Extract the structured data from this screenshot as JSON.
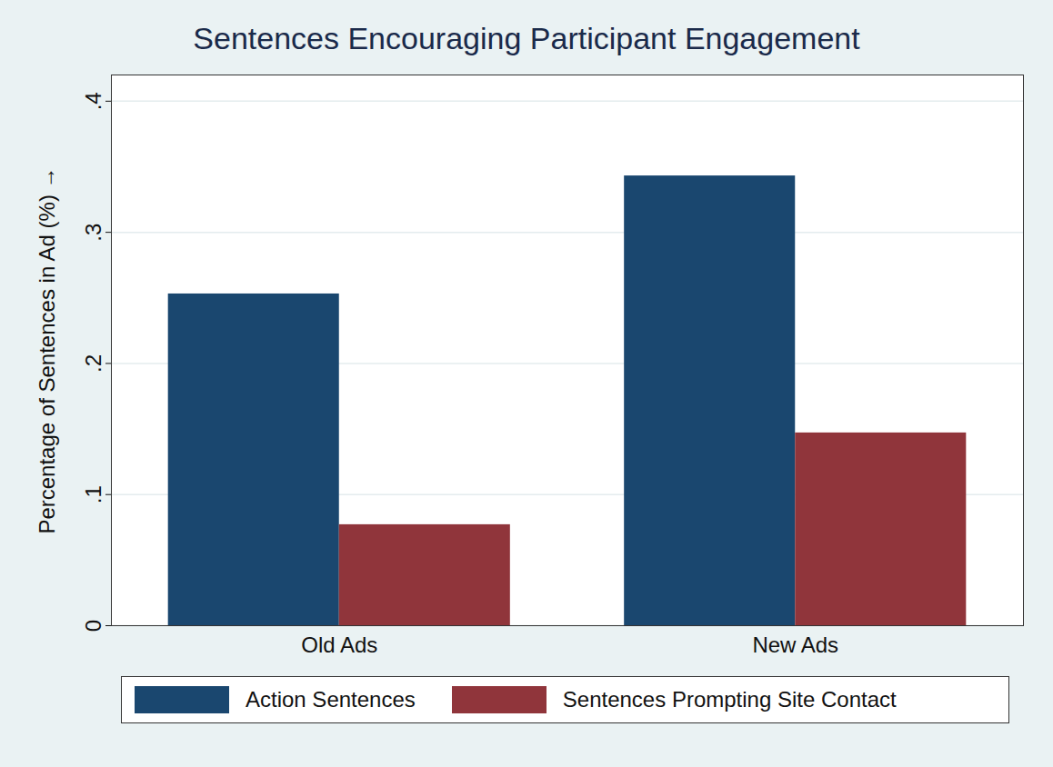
{
  "chart_data": {
    "type": "bar",
    "title": "Sentences Encouraging Participant Engagement",
    "ylabel": "Percentage of Sentences in Ad (%)",
    "categories": [
      "Old Ads",
      "New Ads"
    ],
    "series": [
      {
        "name": "Action Sentences",
        "color": "#1a476f",
        "values": [
          0.253,
          0.343
        ]
      },
      {
        "name": "Sentences Prompting Site Contact",
        "color": "#90353b",
        "values": [
          0.077,
          0.147
        ]
      }
    ],
    "ylim": [
      0,
      0.42
    ],
    "yticks": [
      0,
      {
        "value": 0.1,
        "label": ".1"
      },
      {
        "value": 0.2,
        "label": ".2"
      },
      {
        "value": 0.3,
        "label": ".3"
      },
      {
        "value": 0.4,
        "label": ".4"
      }
    ],
    "grid": true,
    "legend": "bottom"
  }
}
